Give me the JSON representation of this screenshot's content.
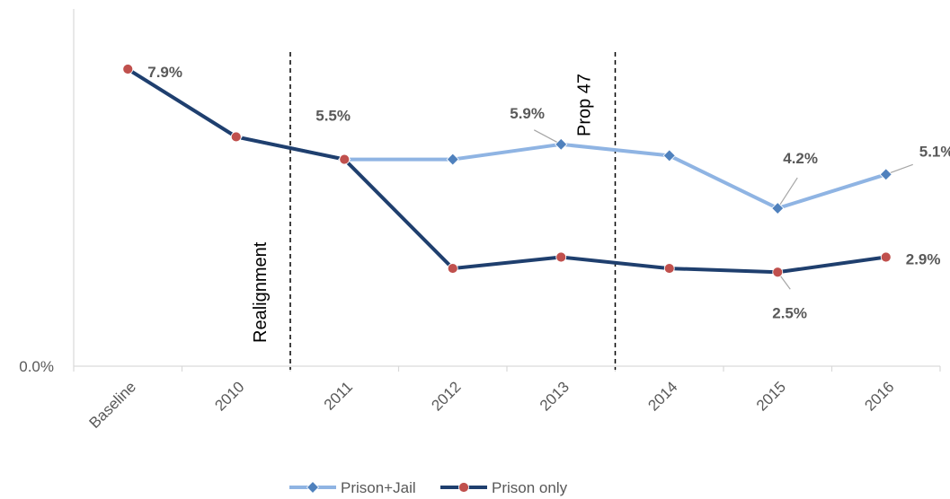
{
  "chart_data": {
    "type": "line",
    "categories": [
      "Baseline",
      "2010",
      "2011",
      "2012",
      "2013",
      "2014",
      "2015",
      "2016"
    ],
    "series": [
      {
        "name": "Prison+Jail",
        "values": [
          7.9,
          6.1,
          5.5,
          5.5,
          5.9,
          5.6,
          4.2,
          5.1
        ],
        "color": "#8fb4e3",
        "marker": "diamond",
        "marker_color": "#4f81bd"
      },
      {
        "name": "Prison only",
        "values": [
          7.9,
          6.1,
          5.5,
          2.6,
          2.9,
          2.6,
          2.5,
          2.9
        ],
        "color": "#1f3f6e",
        "marker": "circle",
        "marker_color": "#c0504d"
      }
    ],
    "ylim": [
      0,
      9.5
    ],
    "y_tick_labels": [
      {
        "value": 0,
        "label": "0.0%"
      }
    ],
    "grid": false,
    "legend_position": "bottom",
    "data_labels": [
      {
        "series": 1,
        "index": 0,
        "text": "7.9%"
      },
      {
        "series": 0,
        "index": 2,
        "text": "5.5%"
      },
      {
        "series": 0,
        "index": 4,
        "text": "5.9%"
      },
      {
        "series": 0,
        "index": 6,
        "text": "4.2%"
      },
      {
        "series": 0,
        "index": 7,
        "text": "5.1%"
      },
      {
        "series": 1,
        "index": 6,
        "text": "2.5%"
      },
      {
        "series": 1,
        "index": 7,
        "text": "2.9%"
      }
    ],
    "vertical_markers": [
      {
        "label": "Realignment",
        "after_index": 1
      },
      {
        "label": "Prop 47",
        "after_index": 4
      }
    ]
  }
}
